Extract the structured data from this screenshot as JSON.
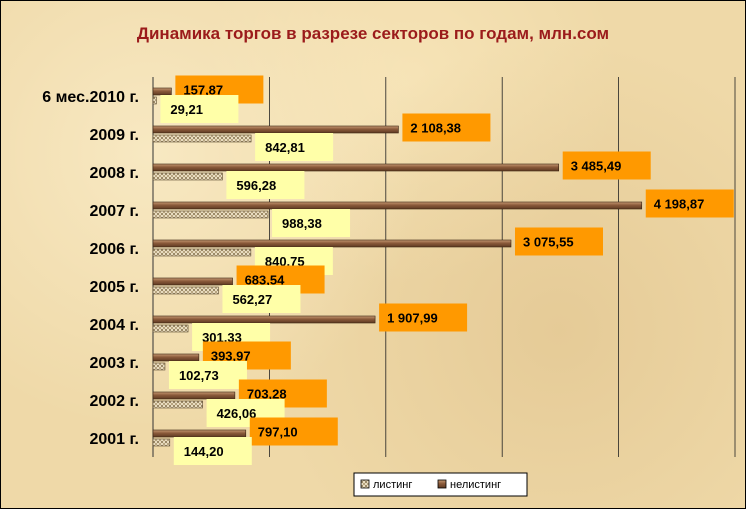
{
  "chart_data": {
    "type": "bar",
    "orientation": "horizontal",
    "title": "Динамика торгов в разрезе секторов по годам, млн.сом",
    "categories": [
      "6 мес.2010 г.",
      "2009 г.",
      "2008 г.",
      "2007 г.",
      "2006 г.",
      "2005 г.",
      "2004 г.",
      "2003 г.",
      "2002 г.",
      "2001 г."
    ],
    "series": [
      {
        "name": "листинг",
        "values": [
          29.21,
          842.81,
          596.28,
          988.38,
          840.75,
          562.27,
          301.33,
          102.73,
          426.06,
          144.2
        ],
        "labels": [
          "29,21",
          "842,81",
          "596,28",
          "988,38",
          "840,75",
          "562,27",
          "301,33",
          "102,73",
          "426,06",
          "144,20"
        ],
        "color": "#d8c8a0"
      },
      {
        "name": "нелистинг",
        "values": [
          157.87,
          2108.38,
          3485.49,
          4198.87,
          3075.55,
          683.54,
          1907.99,
          393.97,
          703.28,
          797.1
        ],
        "labels": [
          "157,87",
          "2 108,38",
          "3 485,49",
          "4 198,87",
          "3 075,55",
          "683,54",
          "1 907,99",
          "393,97",
          "703,28",
          "797,10"
        ],
        "color": "#8a5a3a"
      }
    ],
    "xlim": [
      0,
      5000
    ],
    "grid": true,
    "legend": "bottom-right",
    "label_colors": {
      "listing": "#ffffa8",
      "nonlisting": "#ff9900"
    }
  }
}
